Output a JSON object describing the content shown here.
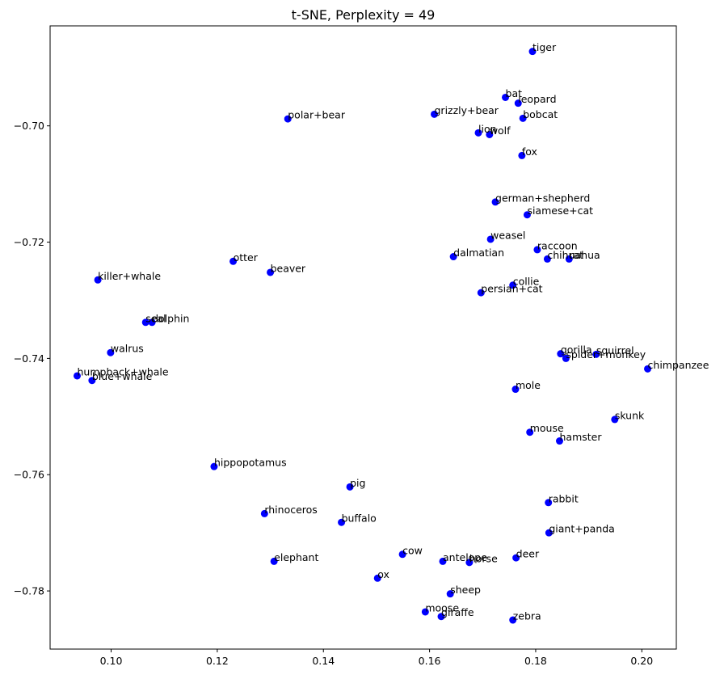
{
  "chart_data": {
    "type": "scatter",
    "title": "t-SNE, Perplexity = 49",
    "xlabel": "",
    "ylabel": "",
    "xlim": [
      0.0885,
      0.2065
    ],
    "ylim": [
      -0.79,
      -0.6828
    ],
    "grid": false,
    "marker_color": "#0000ff",
    "x_ticks": [
      0.1,
      0.12,
      0.14,
      0.16,
      0.18,
      0.2
    ],
    "x_tick_labels": [
      "0.10",
      "0.12",
      "0.14",
      "0.16",
      "0.18",
      "0.20"
    ],
    "y_ticks": [
      -0.78,
      -0.76,
      -0.74,
      -0.72,
      -0.7
    ],
    "y_tick_labels": [
      "−0.78",
      "−0.76",
      "−0.74",
      "−0.72",
      "−0.70"
    ],
    "points": [
      {
        "label": "tiger",
        "x": 0.1794,
        "y": -0.6872
      },
      {
        "label": "bat",
        "x": 0.1743,
        "y": -0.6951
      },
      {
        "label": "leopard",
        "x": 0.1767,
        "y": -0.6961
      },
      {
        "label": "polar+bear",
        "x": 0.1333,
        "y": -0.6988
      },
      {
        "label": "grizzly+bear",
        "x": 0.1609,
        "y": -0.698
      },
      {
        "label": "bobcat",
        "x": 0.1776,
        "y": -0.6987
      },
      {
        "label": "lion",
        "x": 0.1692,
        "y": -0.7012
      },
      {
        "label": "wolf",
        "x": 0.1713,
        "y": -0.7015
      },
      {
        "label": "fox",
        "x": 0.1774,
        "y": -0.7051
      },
      {
        "label": "german+shepherd",
        "x": 0.1724,
        "y": -0.7131
      },
      {
        "label": "siamese+cat",
        "x": 0.1784,
        "y": -0.7153
      },
      {
        "label": "weasel",
        "x": 0.1715,
        "y": -0.7195
      },
      {
        "label": "raccoon",
        "x": 0.1803,
        "y": -0.7213
      },
      {
        "label": "otter",
        "x": 0.123,
        "y": -0.7233
      },
      {
        "label": "dalmatian",
        "x": 0.1645,
        "y": -0.7225
      },
      {
        "label": "chihuahua",
        "x": 0.1822,
        "y": -0.7229
      },
      {
        "label": "rat",
        "x": 0.1863,
        "y": -0.7229
      },
      {
        "label": "beaver",
        "x": 0.13,
        "y": -0.7252
      },
      {
        "label": "killer+whale",
        "x": 0.0975,
        "y": -0.7265
      },
      {
        "label": "collie",
        "x": 0.1757,
        "y": -0.7274
      },
      {
        "label": "persian+cat",
        "x": 0.1697,
        "y": -0.7287
      },
      {
        "label": "seal",
        "x": 0.1065,
        "y": -0.7338
      },
      {
        "label": "dolphin",
        "x": 0.1077,
        "y": -0.7338
      },
      {
        "label": "walrus",
        "x": 0.0999,
        "y": -0.739
      },
      {
        "label": "gorilla",
        "x": 0.1847,
        "y": -0.7392
      },
      {
        "label": "squirrel",
        "x": 0.1914,
        "y": -0.7393
      },
      {
        "label": "spider+monkey",
        "x": 0.1857,
        "y": -0.74
      },
      {
        "label": "chimpanzee",
        "x": 0.2011,
        "y": -0.7418
      },
      {
        "label": "humpback+whale",
        "x": 0.0936,
        "y": -0.743
      },
      {
        "label": "blue+whale",
        "x": 0.0964,
        "y": -0.7438
      },
      {
        "label": "mole",
        "x": 0.1762,
        "y": -0.7453
      },
      {
        "label": "skunk",
        "x": 0.1949,
        "y": -0.7505
      },
      {
        "label": "mouse",
        "x": 0.1789,
        "y": -0.7527
      },
      {
        "label": "hamster",
        "x": 0.1845,
        "y": -0.7542
      },
      {
        "label": "hippopotamus",
        "x": 0.1194,
        "y": -0.7586
      },
      {
        "label": "pig",
        "x": 0.145,
        "y": -0.7621
      },
      {
        "label": "rabbit",
        "x": 0.1824,
        "y": -0.7648
      },
      {
        "label": "rhinoceros",
        "x": 0.1289,
        "y": -0.7667
      },
      {
        "label": "buffalo",
        "x": 0.1434,
        "y": -0.7682
      },
      {
        "label": "giant+panda",
        "x": 0.1825,
        "y": -0.77
      },
      {
        "label": "cow",
        "x": 0.1549,
        "y": -0.7737
      },
      {
        "label": "deer",
        "x": 0.1763,
        "y": -0.7743
      },
      {
        "label": "elephant",
        "x": 0.1307,
        "y": -0.7749
      },
      {
        "label": "antelope",
        "x": 0.1625,
        "y": -0.7749
      },
      {
        "label": "horse",
        "x": 0.1675,
        "y": -0.7751
      },
      {
        "label": "ox",
        "x": 0.1502,
        "y": -0.7778
      },
      {
        "label": "sheep",
        "x": 0.1639,
        "y": -0.7805
      },
      {
        "label": "moose",
        "x": 0.1592,
        "y": -0.7836
      },
      {
        "label": "giraffe",
        "x": 0.1622,
        "y": -0.7844
      },
      {
        "label": "zebra",
        "x": 0.1757,
        "y": -0.785
      }
    ]
  }
}
